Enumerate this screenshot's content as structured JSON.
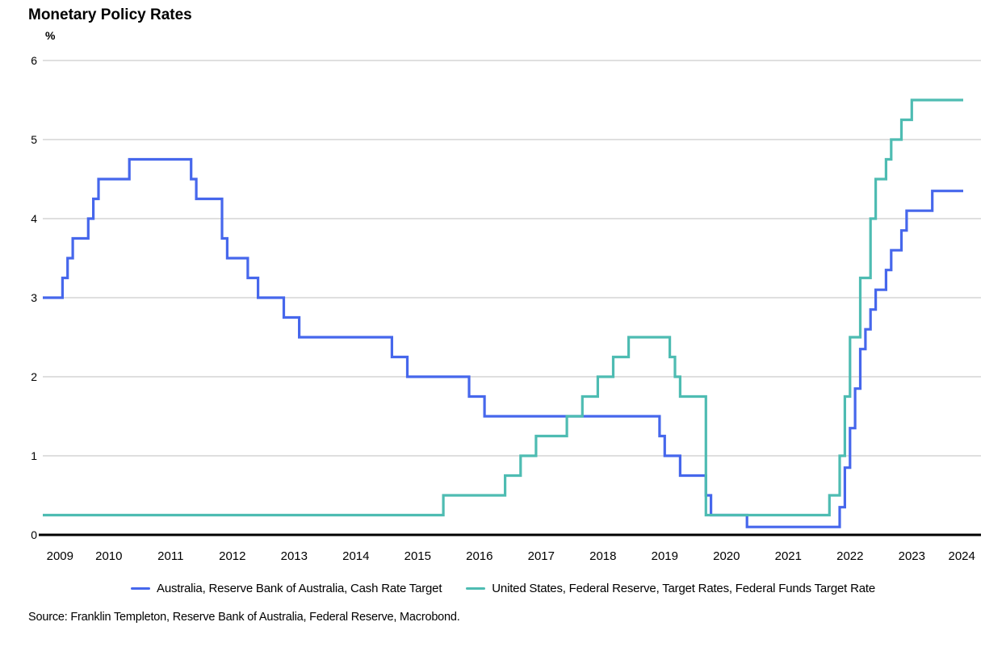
{
  "chart": {
    "title": "Monetary Policy Rates",
    "unit_label": "%",
    "source": "Source: Franklin Templeton, Reserve Bank of Australia, Federal Reserve, Macrobond."
  },
  "chart_data": {
    "type": "line",
    "style": "step",
    "title": "Monetary Policy Rates",
    "xlabel": "",
    "ylabel": "%",
    "ylim": [
      0,
      6
    ],
    "y_ticks": [
      0,
      1,
      2,
      3,
      4,
      5,
      6
    ],
    "x_ticks": [
      2009,
      2010,
      2011,
      2012,
      2013,
      2014,
      2015,
      2016,
      2017,
      2018,
      2019,
      2020,
      2021,
      2022,
      2023,
      2024
    ],
    "x_axis_start": 2009.42,
    "x_axis_end": 2024.62,
    "data_end": "2024-05",
    "grid": "horizontal",
    "gridline_color": "#bfbfbf",
    "axis_color": "#000000",
    "legend_position": "bottom",
    "series": [
      {
        "id": "australia",
        "name": "Australia, Reserve Bank of Australia, Cash Rate Target",
        "color": "#4667ec",
        "points": [
          [
            "2009-06",
            3.0
          ],
          [
            "2009-10",
            3.25
          ],
          [
            "2009-11",
            3.5
          ],
          [
            "2009-12",
            3.75
          ],
          [
            "2010-03",
            4.0
          ],
          [
            "2010-04",
            4.25
          ],
          [
            "2010-05",
            4.5
          ],
          [
            "2010-11",
            4.75
          ],
          [
            "2011-11",
            4.5
          ],
          [
            "2011-12",
            4.25
          ],
          [
            "2012-05",
            3.75
          ],
          [
            "2012-06",
            3.5
          ],
          [
            "2012-10",
            3.25
          ],
          [
            "2012-12",
            3.0
          ],
          [
            "2013-05",
            2.75
          ],
          [
            "2013-08",
            2.5
          ],
          [
            "2015-02",
            2.25
          ],
          [
            "2015-05",
            2.0
          ],
          [
            "2016-05",
            1.75
          ],
          [
            "2016-08",
            1.5
          ],
          [
            "2019-06",
            1.25
          ],
          [
            "2019-07",
            1.0
          ],
          [
            "2019-10",
            0.75
          ],
          [
            "2020-03",
            0.5
          ],
          [
            "2020-04",
            0.25
          ],
          [
            "2020-11",
            0.1
          ],
          [
            "2022-05",
            0.35
          ],
          [
            "2022-06",
            0.85
          ],
          [
            "2022-07",
            1.35
          ],
          [
            "2022-08",
            1.85
          ],
          [
            "2022-09",
            2.35
          ],
          [
            "2022-10",
            2.6
          ],
          [
            "2022-11",
            2.85
          ],
          [
            "2022-12",
            3.1
          ],
          [
            "2023-02",
            3.35
          ],
          [
            "2023-03",
            3.6
          ],
          [
            "2023-05",
            3.85
          ],
          [
            "2023-06",
            4.1
          ],
          [
            "2023-11",
            4.35
          ]
        ]
      },
      {
        "id": "united-states",
        "name": "United States, Federal Reserve, Target Rates, Federal Funds Target Rate",
        "color": "#4ebcb2",
        "points": [
          [
            "2009-06",
            0.25
          ],
          [
            "2015-12",
            0.5
          ],
          [
            "2016-12",
            0.75
          ],
          [
            "2017-03",
            1.0
          ],
          [
            "2017-06",
            1.25
          ],
          [
            "2017-12",
            1.5
          ],
          [
            "2018-03",
            1.75
          ],
          [
            "2018-06",
            2.0
          ],
          [
            "2018-09",
            2.25
          ],
          [
            "2018-12",
            2.5
          ],
          [
            "2019-08",
            2.25
          ],
          [
            "2019-09",
            2.0
          ],
          [
            "2019-10",
            1.75
          ],
          [
            "2020-03",
            0.25
          ],
          [
            "2022-03",
            0.5
          ],
          [
            "2022-05",
            1.0
          ],
          [
            "2022-06",
            1.75
          ],
          [
            "2022-07",
            2.5
          ],
          [
            "2022-09",
            3.25
          ],
          [
            "2022-11",
            4.0
          ],
          [
            "2022-12",
            4.5
          ],
          [
            "2023-02",
            4.75
          ],
          [
            "2023-03",
            5.0
          ],
          [
            "2023-05",
            5.25
          ],
          [
            "2023-07",
            5.5
          ]
        ]
      }
    ]
  }
}
